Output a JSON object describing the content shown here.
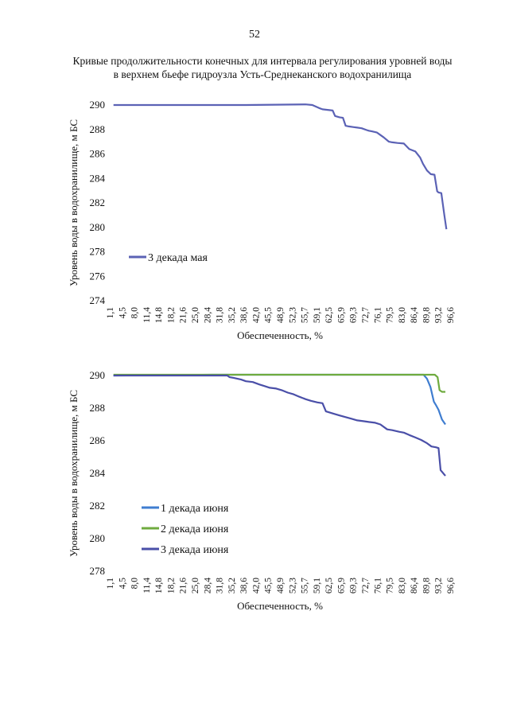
{
  "page_number": "52",
  "caption": {
    "line1": "Кривые продолжительности конечных для интервала регулирования уровней воды",
    "line2": "в верхнем бьефе гидроузла Усть-Среднеканского водохранилища"
  },
  "chart_data": [
    {
      "type": "line",
      "xlabel": "Обеспеченность, %",
      "ylabel": "Уровень воды в водохранилище, м БС",
      "x_ticks": [
        "1,1",
        "4,5",
        "8,0",
        "11,4",
        "14,8",
        "18,2",
        "21,6",
        "25,0",
        "28,4",
        "31,8",
        "35,2",
        "38,6",
        "42,0",
        "45,5",
        "48,9",
        "52,3",
        "55,7",
        "59,1",
        "62,5",
        "65,9",
        "69,3",
        "72,7",
        "76,1",
        "79,5",
        "83,0",
        "86,4",
        "89,8",
        "93,2",
        "96,6"
      ],
      "y_ticks": [
        "274",
        "276",
        "278",
        "280",
        "282",
        "284",
        "286",
        "288",
        "290"
      ],
      "ylim": [
        274,
        290
      ],
      "xlim": [
        0,
        100
      ],
      "legend_position": "left",
      "series": [
        {
          "name": "3 декада мая",
          "color": "#5b62b5",
          "x": [
            1.1,
            20,
            40,
            57.5,
            59.5,
            61.5,
            62.5,
            64,
            65.5,
            66.2,
            67.5,
            68.5,
            69.3,
            70.2,
            71.5,
            72.7,
            74,
            75.5,
            76.1,
            77,
            78.5,
            79.5,
            80.5,
            82,
            83,
            84.5,
            86.4,
            88,
            89.8,
            91.2,
            92,
            93.2,
            94.3,
            95.4,
            96.2,
            96.6,
            97.4,
            98.3,
            98.9
          ],
          "y": [
            290,
            290,
            290,
            290.05,
            290,
            289.75,
            289.65,
            289.6,
            289.55,
            289.1,
            289.0,
            288.95,
            288.3,
            288.25,
            288.2,
            288.15,
            288.1,
            287.95,
            287.9,
            287.85,
            287.75,
            287.55,
            287.35,
            287.0,
            286.95,
            286.9,
            286.85,
            286.4,
            286.2,
            285.7,
            285.2,
            284.65,
            284.35,
            284.3,
            282.95,
            282.85,
            282.8,
            281.0,
            279.85
          ]
        }
      ]
    },
    {
      "type": "line",
      "xlabel": "Обеспеченность, %",
      "ylabel": "Уровень воды в водохранилище, м БС",
      "x_ticks": [
        "1,1",
        "4,5",
        "8,0",
        "11,4",
        "14,8",
        "18,2",
        "21,6",
        "25,0",
        "28,4",
        "31,8",
        "35,2",
        "38,6",
        "42,0",
        "45,5",
        "48,9",
        "52,3",
        "55,7",
        "59,1",
        "62,5",
        "65,9",
        "69,3",
        "72,7",
        "76,1",
        "79,5",
        "83,0",
        "86,4",
        "89,8",
        "93,2",
        "96,6"
      ],
      "y_ticks": [
        "278",
        "280",
        "282",
        "284",
        "286",
        "288",
        "290"
      ],
      "ylim": [
        278,
        290
      ],
      "xlim": [
        0,
        100
      ],
      "legend_position": "left",
      "series": [
        {
          "name": "1 декада июня",
          "color": "#3f7dd0",
          "x": [
            1.1,
            30,
            60,
            90,
            92.2,
            93.2,
            94.2,
            95.2,
            95.8,
            96.6,
            97.6,
            98.6
          ],
          "y": [
            290,
            290.05,
            290.05,
            290.05,
            290.05,
            289.8,
            289.3,
            288.4,
            288.2,
            287.9,
            287.3,
            287.0
          ]
        },
        {
          "name": "2 декада июня",
          "color": "#6fab3f",
          "x": [
            1.1,
            30,
            60,
            90,
            95.5,
            96.3,
            96.9,
            97.6,
            98.6
          ],
          "y": [
            290.05,
            290.05,
            290.05,
            290.05,
            290.05,
            289.9,
            289.1,
            289.0,
            289.0
          ]
        },
        {
          "name": "3 декада июня",
          "color": "#4a4fa8",
          "x": [
            1.1,
            20,
            34.5,
            35.2,
            36.5,
            38.6,
            40,
            42,
            44,
            45.5,
            47,
            48.9,
            50.5,
            52.3,
            54,
            55.7,
            57.5,
            59.1,
            61,
            62.5,
            63.5,
            65.9,
            67.5,
            69.3,
            71,
            72.7,
            74.5,
            76.1,
            78,
            79.5,
            81.5,
            83,
            85,
            86.4,
            88,
            89.8,
            91.5,
            93.2,
            94.5,
            95.8,
            96.6,
            97.2,
            98.6
          ],
          "y": [
            290,
            290,
            290,
            289.9,
            289.85,
            289.75,
            289.65,
            289.6,
            289.45,
            289.35,
            289.25,
            289.2,
            289.1,
            288.95,
            288.85,
            288.7,
            288.55,
            288.45,
            288.35,
            288.3,
            287.8,
            287.65,
            287.55,
            287.45,
            287.35,
            287.25,
            287.2,
            287.15,
            287.1,
            287.0,
            286.7,
            286.65,
            286.55,
            286.5,
            286.35,
            286.2,
            286.05,
            285.85,
            285.65,
            285.6,
            285.55,
            284.2,
            283.85
          ]
        }
      ]
    }
  ]
}
